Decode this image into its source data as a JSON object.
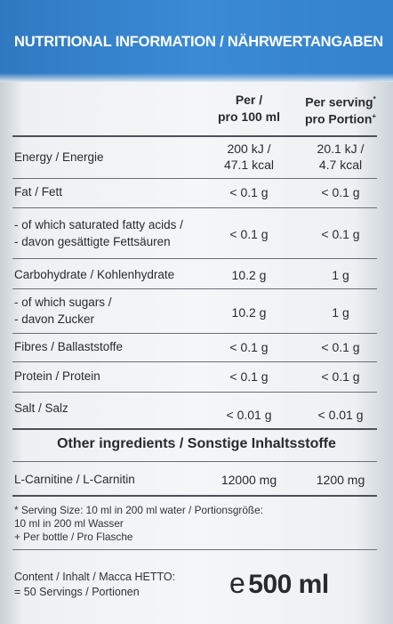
{
  "header": {
    "title": "NUTRITIONAL INFORMATION / NÄHRWERTANGABEN",
    "color": "#3482ce"
  },
  "columns": {
    "per_line1": "Per /",
    "per_line2": "pro 100 ml",
    "serving_line1": "Per serving",
    "serving_mark1": "*",
    "serving_line2": "pro Portion",
    "serving_mark2": "+"
  },
  "rows": [
    {
      "name": [
        "Energy / Energie"
      ],
      "per": [
        "200 kJ /",
        "47.1 kcal"
      ],
      "serving": [
        "20.1 kJ /",
        "4.7 kcal"
      ]
    },
    {
      "name": [
        "Fat / Fett"
      ],
      "per": [
        "< 0.1 g"
      ],
      "serving": [
        "< 0.1 g"
      ]
    },
    {
      "name": [
        "- of which saturated fatty acids /",
        "- davon gesättigte Fettsäuren"
      ],
      "per": [
        "< 0.1 g"
      ],
      "serving": [
        "< 0.1 g"
      ]
    },
    {
      "name": [
        "Carbohydrate / Kohlenhydrate"
      ],
      "per": [
        "10.2 g"
      ],
      "serving": [
        "1 g"
      ]
    },
    {
      "name": [
        "- of which sugars /",
        "- davon Zucker"
      ],
      "per": [
        "10.2 g"
      ],
      "serving": [
        "1 g"
      ]
    },
    {
      "name": [
        "Fibres / Ballaststoffe"
      ],
      "per": [
        "< 0.1 g"
      ],
      "serving": [
        "< 0.1 g"
      ]
    },
    {
      "name": [
        "Protein / Protein"
      ],
      "per": [
        "< 0.1 g"
      ],
      "serving": [
        "< 0.1 g"
      ]
    },
    {
      "name": [
        "Salt / Salz"
      ],
      "per": [
        "< 0.01 g"
      ],
      "serving": [
        "< 0.01 g"
      ]
    }
  ],
  "other": {
    "heading": "Other ingredients / Sonstige Inhaltsstoffe",
    "name": "L-Carnitine / L-Carnitin",
    "per": "12000 mg",
    "serving": "1200 mg"
  },
  "footnotes": {
    "line1": "* Serving Size: 10 ml in 200 ml water / Portionsgröße:",
    "line2": "10 ml in 200 ml Wasser",
    "line3": "+ Per bottle / Pro Flasche"
  },
  "content": {
    "line1": "Content / Inhalt / Macca HETTO:",
    "line2": "= 50 Servings / Portionen",
    "estimated": "e",
    "volume": "500 ml"
  }
}
